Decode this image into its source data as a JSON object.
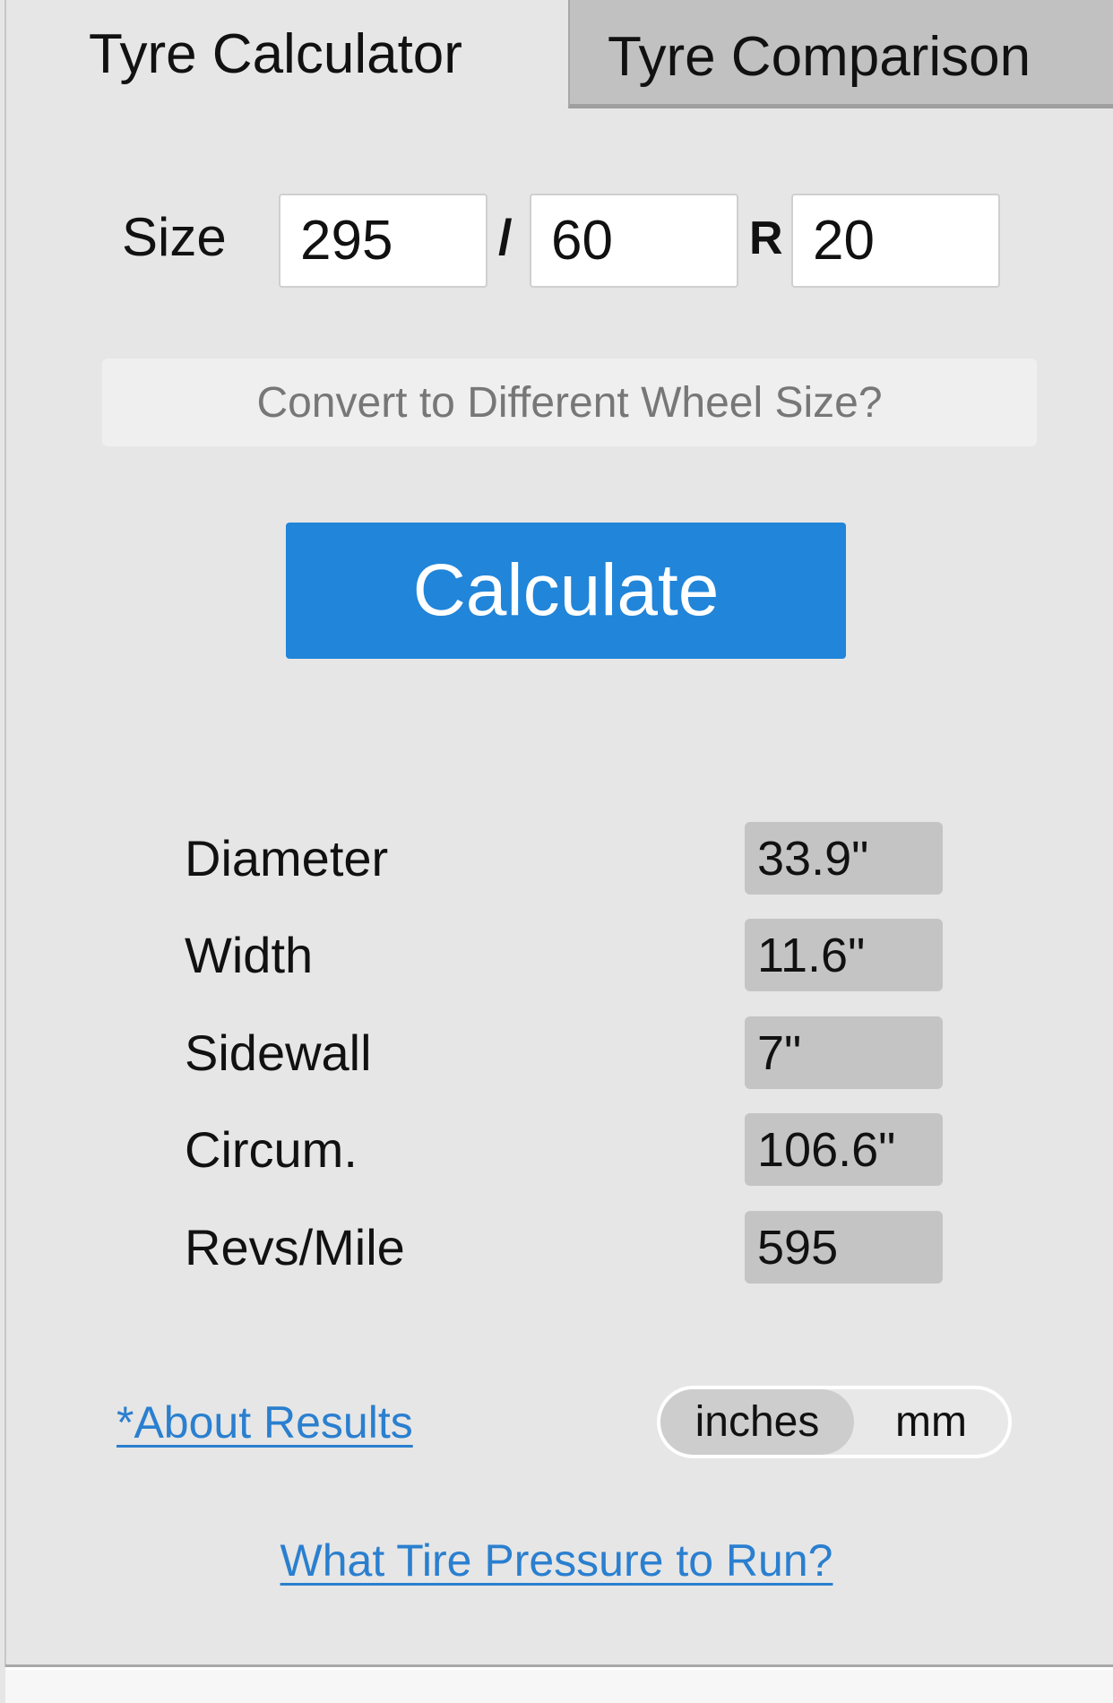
{
  "tabs": [
    {
      "label": "Tyre Calculator",
      "active": true
    },
    {
      "label": "Tyre Comparison",
      "active": false
    }
  ],
  "size": {
    "label": "Size",
    "width": "295",
    "aspect": "60",
    "rim": "20",
    "slash": "/",
    "r": "R"
  },
  "convert_label": "Convert to Different Wheel Size?",
  "calculate_label": "Calculate",
  "results": [
    {
      "label": "Diameter",
      "value": "33.9\""
    },
    {
      "label": "Width",
      "value": "11.6\""
    },
    {
      "label": "Sidewall",
      "value": "7\""
    },
    {
      "label": "Circum.",
      "value": "106.6\""
    },
    {
      "label": "Revs/Mile",
      "value": "595"
    }
  ],
  "about_label": "*About Results",
  "units": {
    "options": [
      "inches",
      "mm"
    ],
    "selected": "inches"
  },
  "pressure_label": "What Tire Pressure to Run?",
  "colors": {
    "accent": "#2185d9",
    "link": "#2a7fcf",
    "background": "#e6e6e6"
  }
}
